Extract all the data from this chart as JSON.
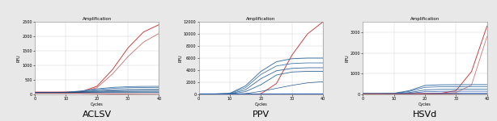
{
  "title": "Amplification",
  "xlabel": "Cycles",
  "ylabel": "RFU",
  "panels": [
    "ACLSV",
    "PPV",
    "HSVd"
  ],
  "background_color": "#e8e8e8",
  "plot_bg_color": "#ffffff",
  "grid_color": "#cccccc",
  "aclsv": {
    "ylim": [
      0,
      2500
    ],
    "yticks": [
      0,
      500,
      1000,
      1500,
      2000,
      2500
    ],
    "xlim": [
      0,
      40
    ],
    "xticks": [
      0,
      10,
      20,
      30,
      40
    ],
    "lines": [
      {
        "color": "#d04040",
        "lw": 0.7,
        "data": [
          [
            0,
            80
          ],
          [
            5,
            80
          ],
          [
            10,
            82
          ],
          [
            15,
            90
          ],
          [
            20,
            280
          ],
          [
            25,
            850
          ],
          [
            30,
            1600
          ],
          [
            35,
            2150
          ],
          [
            40,
            2400
          ]
        ]
      },
      {
        "color": "#c07070",
        "lw": 0.6,
        "data": [
          [
            0,
            72
          ],
          [
            5,
            72
          ],
          [
            10,
            74
          ],
          [
            15,
            82
          ],
          [
            20,
            230
          ],
          [
            25,
            700
          ],
          [
            30,
            1300
          ],
          [
            35,
            1800
          ],
          [
            40,
            2100
          ]
        ]
      },
      {
        "color": "#4477aa",
        "lw": 0.6,
        "data": [
          [
            0,
            68
          ],
          [
            5,
            68
          ],
          [
            10,
            75
          ],
          [
            15,
            120
          ],
          [
            20,
            190
          ],
          [
            25,
            240
          ],
          [
            30,
            265
          ],
          [
            35,
            275
          ],
          [
            40,
            278
          ]
        ]
      },
      {
        "color": "#4477aa",
        "lw": 0.6,
        "data": [
          [
            0,
            64
          ],
          [
            5,
            64
          ],
          [
            10,
            70
          ],
          [
            15,
            108
          ],
          [
            20,
            165
          ],
          [
            25,
            205
          ],
          [
            30,
            228
          ],
          [
            35,
            238
          ],
          [
            40,
            240
          ]
        ]
      },
      {
        "color": "#225588",
        "lw": 0.5,
        "data": [
          [
            0,
            60
          ],
          [
            5,
            60
          ],
          [
            10,
            64
          ],
          [
            15,
            90
          ],
          [
            20,
            130
          ],
          [
            25,
            155
          ],
          [
            30,
            168
          ],
          [
            35,
            172
          ],
          [
            40,
            173
          ]
        ]
      },
      {
        "color": "#225588",
        "lw": 0.5,
        "data": [
          [
            0,
            57
          ],
          [
            5,
            57
          ],
          [
            10,
            60
          ],
          [
            15,
            78
          ],
          [
            20,
            108
          ],
          [
            25,
            128
          ],
          [
            30,
            138
          ],
          [
            35,
            142
          ],
          [
            40,
            143
          ]
        ]
      },
      {
        "color": "#225588",
        "lw": 0.5,
        "data": [
          [
            0,
            54
          ],
          [
            5,
            54
          ],
          [
            10,
            56
          ],
          [
            15,
            66
          ],
          [
            20,
            85
          ],
          [
            25,
            98
          ],
          [
            30,
            104
          ],
          [
            35,
            107
          ],
          [
            40,
            108
          ]
        ]
      },
      {
        "color": "#225588",
        "lw": 0.5,
        "data": [
          [
            0,
            51
          ],
          [
            5,
            51
          ],
          [
            10,
            52
          ],
          [
            15,
            58
          ],
          [
            20,
            68
          ],
          [
            25,
            74
          ],
          [
            30,
            77
          ],
          [
            35,
            78
          ],
          [
            40,
            78
          ]
        ]
      },
      {
        "color": "#225588",
        "lw": 0.5,
        "data": [
          [
            0,
            48
          ],
          [
            5,
            48
          ],
          [
            10,
            49
          ],
          [
            15,
            52
          ],
          [
            20,
            56
          ],
          [
            25,
            58
          ],
          [
            30,
            59
          ],
          [
            35,
            59
          ],
          [
            40,
            58
          ]
        ]
      },
      {
        "color": "#bb3333",
        "lw": 0.5,
        "data": [
          [
            0,
            45
          ],
          [
            5,
            44
          ],
          [
            10,
            42
          ],
          [
            15,
            36
          ],
          [
            20,
            26
          ],
          [
            25,
            16
          ],
          [
            30,
            8
          ],
          [
            35,
            4
          ],
          [
            40,
            2
          ]
        ]
      }
    ]
  },
  "ppv": {
    "ylim": [
      0,
      12000
    ],
    "yticks": [
      0,
      2000,
      4000,
      6000,
      8000,
      10000,
      12000
    ],
    "xlim": [
      0,
      40
    ],
    "xticks": [
      0,
      10,
      20,
      30,
      40
    ],
    "lines": [
      {
        "color": "#d04040",
        "lw": 0.7,
        "data": [
          [
            0,
            -50
          ],
          [
            5,
            -60
          ],
          [
            10,
            -80
          ],
          [
            15,
            -40
          ],
          [
            20,
            100
          ],
          [
            25,
            1800
          ],
          [
            30,
            6500
          ],
          [
            35,
            10000
          ],
          [
            40,
            12000
          ]
        ]
      },
      {
        "color": "#4477aa",
        "lw": 0.7,
        "data": [
          [
            0,
            80
          ],
          [
            5,
            80
          ],
          [
            10,
            180
          ],
          [
            15,
            1400
          ],
          [
            20,
            3800
          ],
          [
            25,
            5400
          ],
          [
            30,
            5900
          ],
          [
            35,
            6000
          ],
          [
            40,
            6000
          ]
        ]
      },
      {
        "color": "#4477aa",
        "lw": 0.6,
        "data": [
          [
            0,
            65
          ],
          [
            5,
            65
          ],
          [
            10,
            140
          ],
          [
            15,
            1100
          ],
          [
            20,
            3300
          ],
          [
            25,
            4700
          ],
          [
            30,
            5100
          ],
          [
            35,
            5200
          ],
          [
            40,
            5200
          ]
        ]
      },
      {
        "color": "#336699",
        "lw": 0.6,
        "data": [
          [
            0,
            50
          ],
          [
            5,
            50
          ],
          [
            10,
            90
          ],
          [
            15,
            750
          ],
          [
            20,
            2600
          ],
          [
            25,
            3900
          ],
          [
            30,
            4300
          ],
          [
            35,
            4400
          ],
          [
            40,
            4400
          ]
        ]
      },
      {
        "color": "#336699",
        "lw": 0.6,
        "data": [
          [
            0,
            40
          ],
          [
            5,
            40
          ],
          [
            10,
            70
          ],
          [
            15,
            450
          ],
          [
            20,
            1600
          ],
          [
            25,
            3200
          ],
          [
            30,
            3700
          ],
          [
            35,
            3800
          ],
          [
            40,
            3800
          ]
        ]
      },
      {
        "color": "#225588",
        "lw": 0.5,
        "data": [
          [
            0,
            30
          ],
          [
            5,
            30
          ],
          [
            10,
            45
          ],
          [
            15,
            130
          ],
          [
            20,
            500
          ],
          [
            25,
            1000
          ],
          [
            30,
            1500
          ],
          [
            35,
            1900
          ],
          [
            40,
            2100
          ]
        ]
      },
      {
        "color": "#2255aa",
        "lw": 0.5,
        "data": [
          [
            0,
            22
          ],
          [
            5,
            22
          ],
          [
            10,
            28
          ],
          [
            15,
            42
          ],
          [
            20,
            70
          ],
          [
            25,
            88
          ],
          [
            30,
            98
          ],
          [
            35,
            100
          ],
          [
            40,
            100
          ]
        ]
      },
      {
        "color": "#2255aa",
        "lw": 0.5,
        "data": [
          [
            0,
            14
          ],
          [
            5,
            14
          ],
          [
            10,
            16
          ],
          [
            15,
            20
          ],
          [
            20,
            25
          ],
          [
            25,
            28
          ],
          [
            30,
            30
          ],
          [
            35,
            30
          ],
          [
            40,
            30
          ]
        ]
      },
      {
        "color": "#2255aa",
        "lw": 0.5,
        "data": [
          [
            0,
            7
          ],
          [
            5,
            7
          ],
          [
            10,
            8
          ],
          [
            15,
            10
          ],
          [
            20,
            12
          ],
          [
            25,
            13
          ],
          [
            30,
            13
          ],
          [
            35,
            13
          ],
          [
            40,
            13
          ]
        ]
      }
    ]
  },
  "hsvd": {
    "ylim": [
      0,
      3500
    ],
    "yticks": [
      0,
      1000,
      2000,
      3000
    ],
    "xlim": [
      0,
      40
    ],
    "xticks": [
      0,
      10,
      20,
      30,
      40
    ],
    "lines": [
      {
        "color": "#d04040",
        "lw": 0.7,
        "data": [
          [
            0,
            40
          ],
          [
            5,
            40
          ],
          [
            10,
            40
          ],
          [
            15,
            40
          ],
          [
            20,
            42
          ],
          [
            25,
            50
          ],
          [
            30,
            180
          ],
          [
            35,
            1100
          ],
          [
            40,
            3300
          ]
        ]
      },
      {
        "color": "#cc7777",
        "lw": 0.6,
        "data": [
          [
            0,
            35
          ],
          [
            5,
            35
          ],
          [
            10,
            35
          ],
          [
            15,
            36
          ],
          [
            20,
            37
          ],
          [
            25,
            42
          ],
          [
            30,
            90
          ],
          [
            35,
            450
          ],
          [
            40,
            2800
          ]
        ]
      },
      {
        "color": "#4477aa",
        "lw": 0.7,
        "data": [
          [
            0,
            42
          ],
          [
            5,
            42
          ],
          [
            10,
            52
          ],
          [
            15,
            180
          ],
          [
            20,
            430
          ],
          [
            25,
            460
          ],
          [
            30,
            465
          ],
          [
            35,
            468
          ],
          [
            40,
            470
          ]
        ]
      },
      {
        "color": "#4477aa",
        "lw": 0.6,
        "data": [
          [
            0,
            36
          ],
          [
            5,
            36
          ],
          [
            10,
            44
          ],
          [
            15,
            145
          ],
          [
            20,
            340
          ],
          [
            25,
            368
          ],
          [
            30,
            372
          ],
          [
            35,
            374
          ],
          [
            40,
            374
          ]
        ]
      },
      {
        "color": "#336699",
        "lw": 0.6,
        "data": [
          [
            0,
            30
          ],
          [
            5,
            30
          ],
          [
            10,
            35
          ],
          [
            15,
            88
          ],
          [
            20,
            215
          ],
          [
            25,
            240
          ],
          [
            30,
            244
          ],
          [
            35,
            246
          ],
          [
            40,
            246
          ]
        ]
      },
      {
        "color": "#2255aa",
        "lw": 0.5,
        "data": [
          [
            0,
            26
          ],
          [
            5,
            26
          ],
          [
            10,
            28
          ],
          [
            15,
            52
          ],
          [
            20,
            130
          ],
          [
            25,
            148
          ],
          [
            30,
            152
          ],
          [
            35,
            153
          ],
          [
            40,
            153
          ]
        ]
      },
      {
        "color": "#2255aa",
        "lw": 0.5,
        "data": [
          [
            0,
            22
          ],
          [
            5,
            22
          ],
          [
            10,
            23
          ],
          [
            15,
            26
          ],
          [
            20,
            44
          ],
          [
            25,
            52
          ],
          [
            30,
            55
          ],
          [
            35,
            56
          ],
          [
            40,
            56
          ]
        ]
      },
      {
        "color": "#2255aa",
        "lw": 0.5,
        "data": [
          [
            0,
            18
          ],
          [
            5,
            18
          ],
          [
            10,
            18
          ],
          [
            15,
            18
          ],
          [
            20,
            22
          ],
          [
            25,
            26
          ],
          [
            30,
            27
          ],
          [
            35,
            27
          ],
          [
            40,
            27
          ]
        ]
      },
      {
        "color": "#aaaaaa",
        "lw": 0.5,
        "data": [
          [
            0,
            14
          ],
          [
            5,
            14
          ],
          [
            10,
            13
          ],
          [
            15,
            11
          ],
          [
            20,
            9
          ],
          [
            25,
            7
          ],
          [
            30,
            5
          ],
          [
            35,
            3
          ],
          [
            40,
            1
          ]
        ]
      },
      {
        "color": "#bb3333",
        "lw": 0.5,
        "data": [
          [
            0,
            10
          ],
          [
            5,
            10
          ],
          [
            10,
            9
          ],
          [
            15,
            9
          ],
          [
            20,
            7
          ],
          [
            25,
            5
          ],
          [
            30,
            2
          ],
          [
            35,
            -30
          ],
          [
            40,
            -80
          ]
        ]
      }
    ]
  }
}
